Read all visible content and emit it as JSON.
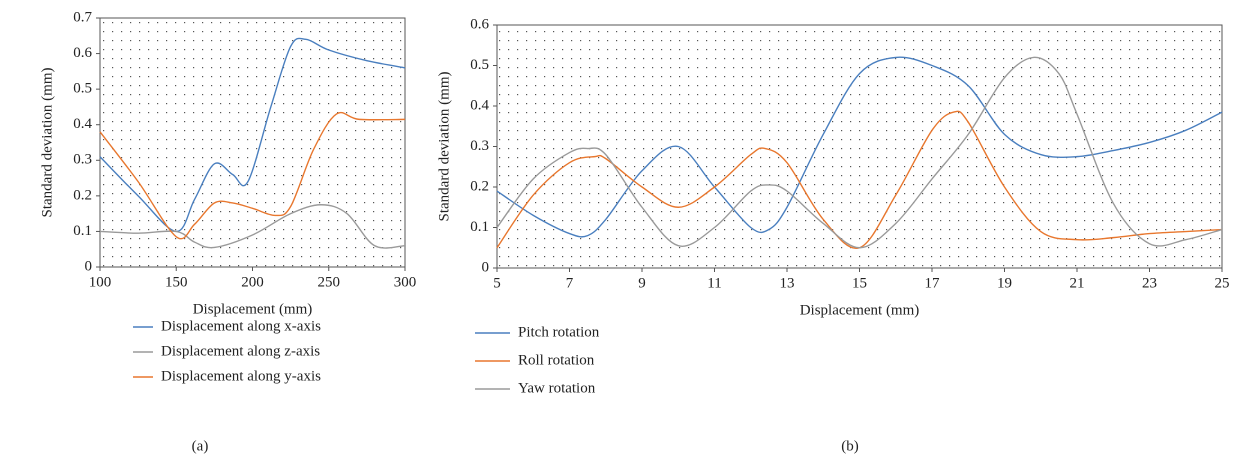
{
  "chart_data": [
    {
      "type": "line",
      "label": "(a)",
      "xlabel": "Displacement (mm)",
      "ylabel": "Standard deviation (mm)",
      "xlim": [
        100,
        300
      ],
      "xticks": [
        100,
        150,
        200,
        250,
        300
      ],
      "ylim": [
        0,
        0.7
      ],
      "yticks": [
        0,
        0.1,
        0.2,
        0.3,
        0.4,
        0.5,
        0.6,
        0.7
      ],
      "series": [
        {
          "name": "Displacement along x-axis",
          "color": "#4a7fbf",
          "x": [
            100,
            125,
            150,
            162,
            175,
            187,
            197,
            212,
            225,
            235,
            250,
            275,
            300
          ],
          "values": [
            0.31,
            0.2,
            0.1,
            0.19,
            0.29,
            0.26,
            0.24,
            0.45,
            0.62,
            0.64,
            0.61,
            0.58,
            0.56
          ]
        },
        {
          "name": "Displacement along z-axis",
          "color": "#9a9a9a",
          "x": [
            100,
            125,
            150,
            162,
            175,
            200,
            225,
            245,
            262,
            280,
            300
          ],
          "values": [
            0.1,
            0.095,
            0.1,
            0.07,
            0.055,
            0.09,
            0.15,
            0.175,
            0.15,
            0.06,
            0.06
          ]
        },
        {
          "name": "Displacement along y-axis",
          "color": "#e8772e",
          "x": [
            100,
            125,
            150,
            162,
            175,
            187,
            200,
            215,
            225,
            240,
            255,
            270,
            300
          ],
          "values": [
            0.38,
            0.24,
            0.085,
            0.12,
            0.18,
            0.18,
            0.165,
            0.145,
            0.17,
            0.33,
            0.43,
            0.415,
            0.415
          ]
        }
      ]
    },
    {
      "type": "line",
      "label": "(b)",
      "xlabel": "Displacement (mm)",
      "ylabel": "Standard deviation (mm)",
      "xlim": [
        5,
        25
      ],
      "xticks": [
        5,
        7,
        9,
        11,
        13,
        15,
        17,
        19,
        21,
        23,
        25
      ],
      "ylim": [
        0,
        0.6
      ],
      "yticks": [
        0,
        0.1,
        0.2,
        0.3,
        0.4,
        0.5,
        0.6
      ],
      "series": [
        {
          "name": "Pitch rotation",
          "color": "#4a7fbf",
          "x": [
            5,
            6,
            7,
            7.5,
            8,
            9,
            10,
            11,
            12,
            12.5,
            13,
            14,
            15,
            16,
            17,
            18,
            19,
            20,
            21,
            22,
            23,
            24,
            25
          ],
          "values": [
            0.19,
            0.13,
            0.085,
            0.08,
            0.12,
            0.24,
            0.3,
            0.2,
            0.1,
            0.095,
            0.15,
            0.33,
            0.48,
            0.52,
            0.5,
            0.45,
            0.33,
            0.28,
            0.275,
            0.29,
            0.31,
            0.34,
            0.385
          ]
        },
        {
          "name": "Roll rotation",
          "color": "#e8772e",
          "x": [
            5,
            6,
            7,
            7.7,
            8,
            9,
            10,
            11,
            12,
            12.4,
            13,
            14,
            15,
            16,
            17,
            17.6,
            18,
            19,
            20,
            21,
            22,
            23,
            24,
            25
          ],
          "values": [
            0.05,
            0.18,
            0.26,
            0.275,
            0.27,
            0.2,
            0.15,
            0.2,
            0.28,
            0.295,
            0.26,
            0.12,
            0.05,
            0.18,
            0.34,
            0.385,
            0.36,
            0.2,
            0.09,
            0.07,
            0.075,
            0.085,
            0.09,
            0.095
          ]
        },
        {
          "name": "Yaw rotation",
          "color": "#9a9a9a",
          "x": [
            5,
            6,
            7,
            7.5,
            8,
            9,
            10,
            11,
            12,
            12.5,
            13,
            14,
            15,
            16,
            17,
            18,
            19,
            19.8,
            20.5,
            21,
            22,
            23,
            24,
            25
          ],
          "values": [
            0.1,
            0.22,
            0.285,
            0.295,
            0.28,
            0.15,
            0.055,
            0.1,
            0.19,
            0.205,
            0.19,
            0.11,
            0.05,
            0.11,
            0.22,
            0.33,
            0.47,
            0.52,
            0.48,
            0.38,
            0.16,
            0.06,
            0.07,
            0.095
          ]
        }
      ]
    }
  ]
}
